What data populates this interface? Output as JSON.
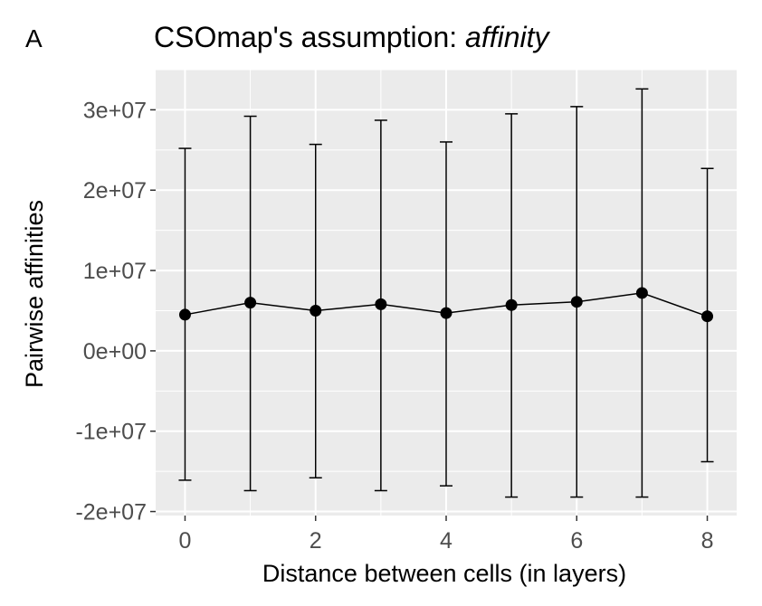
{
  "panel_label": "A",
  "title_prefix": "CSOmap's assumption: ",
  "title_emphasis": "affinity",
  "colors": {
    "panel_bg": "#ebebeb",
    "grid": "#ffffff",
    "series": "#000000",
    "tick_text": "#4d4d4d",
    "text": "#000000"
  },
  "chart_data": {
    "type": "line",
    "title": "CSOmap's assumption: affinity",
    "xlabel": "Distance between cells (in layers)",
    "ylabel": "Pairwise affinities",
    "xlim": [
      -0.45,
      8.45
    ],
    "ylim": [
      -20500000,
      35000000
    ],
    "x_ticks": [
      0,
      2,
      4,
      6,
      8
    ],
    "x_tick_labels": [
      "0",
      "2",
      "4",
      "6",
      "8"
    ],
    "y_ticks": [
      -20000000,
      -10000000,
      0,
      10000000,
      20000000,
      30000000
    ],
    "y_tick_labels": [
      "-2e+07",
      "-1e+07",
      "0e+00",
      "1e+07",
      "2e+07",
      "3e+07"
    ],
    "grid": true,
    "legend": "none",
    "series": [
      {
        "x": [
          0,
          1,
          2,
          3,
          4,
          5,
          6,
          7,
          8
        ],
        "y": [
          4500000,
          6000000,
          5000000,
          5800000,
          4700000,
          5700000,
          6100000,
          7200000,
          4300000
        ],
        "error_low": [
          -16100000,
          -17400000,
          -15800000,
          -17400000,
          -16800000,
          -18200000,
          -18200000,
          -18200000,
          -13800000
        ],
        "error_high": [
          25200000,
          29200000,
          25700000,
          28700000,
          26000000,
          29500000,
          30400000,
          32600000,
          22700000
        ]
      }
    ]
  }
}
